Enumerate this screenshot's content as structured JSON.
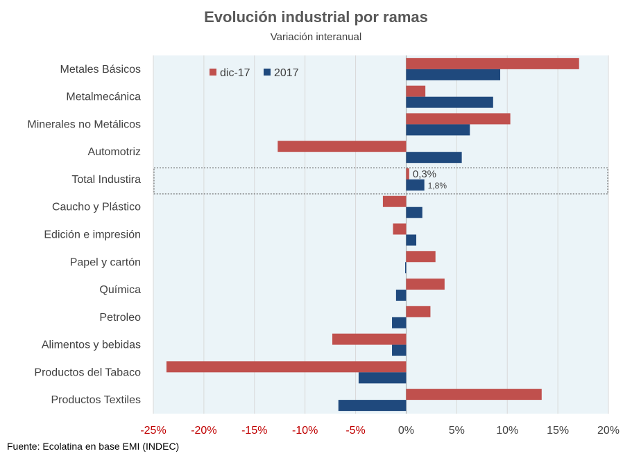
{
  "chart_data": {
    "type": "bar",
    "orientation": "horizontal",
    "title": "Evolución industrial por ramas",
    "subtitle": "Variación interanual",
    "categories": [
      "Metales Básicos",
      "Metalmecánica",
      "Minerales no Metálicos",
      "Automotriz",
      "Total Industira",
      "Caucho y Plástico",
      "Edición e impresión",
      "Papel y cartón",
      "Química",
      "Petroleo",
      "Alimentos y bebidas",
      "Productos del Tabaco",
      "Productos Textiles"
    ],
    "series": [
      {
        "name": "dic-17",
        "color": "#C0504D",
        "values": [
          17.1,
          1.9,
          10.3,
          -12.7,
          0.3,
          -2.3,
          -1.3,
          2.9,
          3.8,
          2.4,
          -7.3,
          -23.7,
          13.4
        ]
      },
      {
        "name": "2017",
        "color": "#1F497D",
        "values": [
          9.3,
          8.6,
          6.3,
          5.5,
          1.8,
          1.6,
          1.0,
          -0.1,
          -1.0,
          -1.4,
          -1.4,
          -4.7,
          -6.7
        ]
      }
    ],
    "xlim": [
      -25,
      20
    ],
    "xticks": [
      -25,
      -20,
      -15,
      -10,
      -5,
      0,
      5,
      10,
      15,
      20
    ],
    "xtick_labels": [
      "-25%",
      "-20%",
      "-15%",
      "-10%",
      "-5%",
      "0%",
      "5%",
      "10%",
      "15%",
      "20%"
    ],
    "negative_tick_color": "#C00000",
    "grid": true,
    "legend_position": "top-left",
    "highlighted_category": "Total Industira",
    "data_labels": [
      {
        "category": "Total Industira",
        "series": "dic-17",
        "text": "0,3%"
      },
      {
        "category": "Total Industira",
        "series": "2017",
        "text": "1,8%"
      }
    ],
    "plot_background": "#EBF4F8"
  },
  "footer": {
    "source": "Fuente: Ecolatina en base  EMI (INDEC)"
  }
}
